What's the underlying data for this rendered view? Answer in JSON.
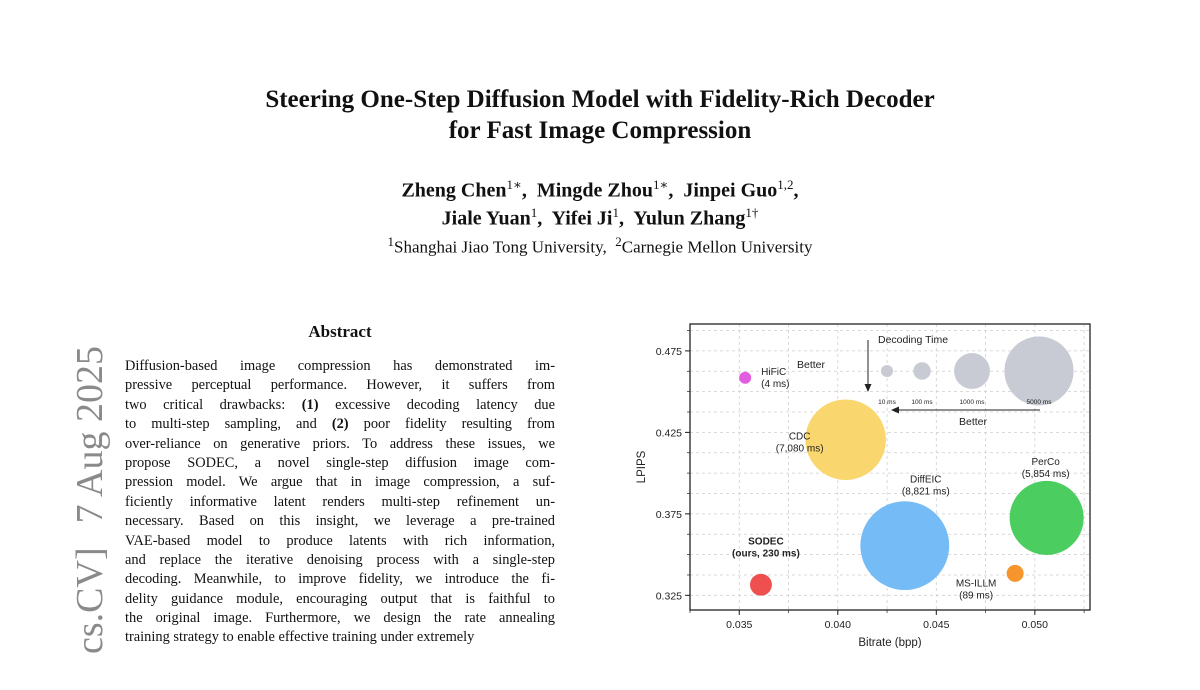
{
  "paper": {
    "title_line1": "Steering One-Step Diffusion Model with Fidelity-Rich Decoder",
    "title_line2": "for Fast Image Compression",
    "authors": [
      {
        "name": "Zheng Chen",
        "sup": "1∗"
      },
      {
        "name": "Mingde Zhou",
        "sup": "1∗"
      },
      {
        "name": "Jinpei Guo",
        "sup": "1,2"
      },
      {
        "name": "Jiale Yuan",
        "sup": "1"
      },
      {
        "name": "Yifei Ji",
        "sup": "1"
      },
      {
        "name": "Yulun Zhang",
        "sup": "1†"
      }
    ],
    "affiliations": [
      {
        "sup": "1",
        "name": "Shanghai Jiao Tong University"
      },
      {
        "sup": "2",
        "name": "Carnegie Mellon University"
      }
    ],
    "arxiv_stamp": {
      "category": "cs.CV]",
      "date": "7 Aug 2025"
    },
    "abstract_heading": "Abstract",
    "abstract_lines": [
      "Diffusion-based image compression has demonstrated im-",
      "pressive perceptual performance. However, it suffers from",
      "two critical drawbacks: (1) excessive decoding latency due",
      "to multi-step sampling, and (2) poor fidelity resulting from",
      "over-reliance on generative priors. To address these issues, we",
      "propose SODEC, a novel single-step diffusion image com-",
      "pression model. We argue that in image compression, a suf-",
      "ficiently informative latent renders multi-step refinement un-",
      "necessary. Based on this insight, we leverage a pre-trained",
      "VAE-based model to produce latents with rich information,",
      "and replace the iterative denoising process with a single-step",
      "decoding. Meanwhile, to improve fidelity, we introduce the fi-",
      "delity guidance module, encouraging output that is faithful to",
      "the original image. Furthermore, we design the rate annealing",
      "training strategy to enable effective training under extremely"
    ]
  },
  "chart_data": {
    "type": "scatter",
    "xlabel": "Bitrate (bpp)",
    "ylabel": "LPIPS",
    "xlim": [
      0.0325,
      0.0528
    ],
    "ylim": [
      0.316,
      0.4915
    ],
    "xticks": [
      0.035,
      0.04,
      0.045,
      0.05
    ],
    "xtick_labels": [
      "0.035",
      "0.040",
      "0.045",
      "0.050"
    ],
    "yticks": [
      0.325,
      0.375,
      0.425,
      0.475
    ],
    "ytick_labels": [
      "0.325",
      "0.375",
      "0.425",
      "0.475"
    ],
    "grid": true,
    "points": [
      {
        "label": "HiFiC",
        "time_label": "(4 ms)",
        "time_ms": 4,
        "x": 0.0353,
        "y": 0.4585,
        "color": "#e25ee0"
      },
      {
        "label": "CDC",
        "time_label": "(7,080 ms)",
        "time_ms": 7080,
        "x": 0.0404,
        "y": 0.4205,
        "color": "#f9d76e"
      },
      {
        "label": "PerCo",
        "time_label": "(5,854 ms)",
        "time_ms": 5854,
        "x": 0.0506,
        "y": 0.3725,
        "color": "#4ccd5f"
      },
      {
        "label": "DiffEIC",
        "time_label": "(8,821 ms)",
        "time_ms": 8821,
        "x": 0.0434,
        "y": 0.3555,
        "color": "#75bbf5"
      },
      {
        "label": "MS-ILLM",
        "time_label": "(89 ms)",
        "time_ms": 89,
        "x": 0.049,
        "y": 0.3385,
        "color": "#f6952c"
      },
      {
        "label": "SODEC",
        "time_label": "(ours, 230 ms)",
        "time_ms": 230,
        "x": 0.0361,
        "y": 0.3315,
        "color": "#ee5050"
      }
    ],
    "legend": {
      "title": "Decoding Time",
      "sizes": [
        "10 ms",
        "100 ms",
        "1000 ms",
        "5000 ms"
      ],
      "size_color": "#c8cbd3",
      "better_vertical": "Better",
      "better_horizontal": "Better"
    }
  }
}
